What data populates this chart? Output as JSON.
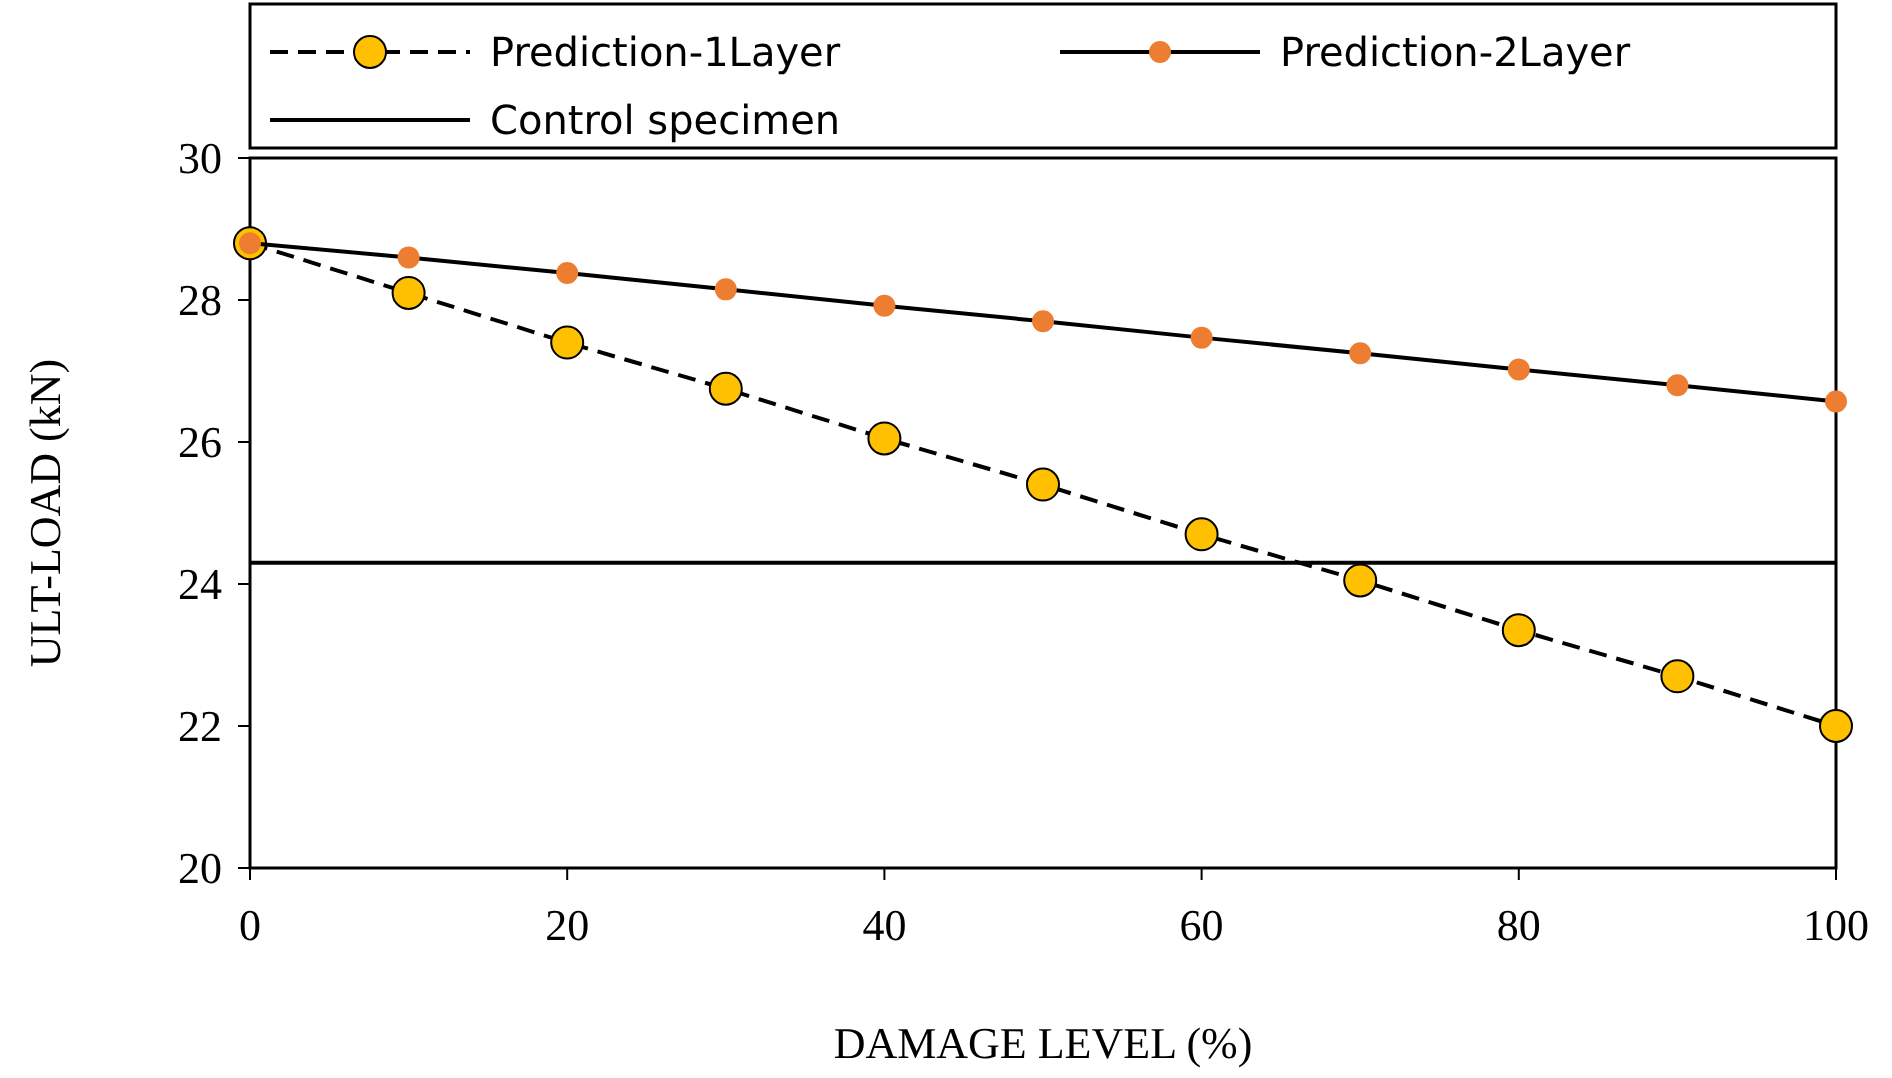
{
  "chart_data": {
    "type": "line",
    "xlabel": "DAMAGE LEVEL (%)",
    "ylabel": "ULT-LOAD (kN)",
    "x": [
      0,
      10,
      20,
      30,
      40,
      50,
      60,
      70,
      80,
      90,
      100
    ],
    "series": [
      {
        "name": "Prediction-1Layer",
        "color": "#ffc000",
        "marker": "circle",
        "line_style": "dashed",
        "values": [
          28.8,
          28.1,
          27.4,
          26.75,
          26.05,
          25.4,
          24.7,
          24.05,
          23.35,
          22.7,
          22.0
        ]
      },
      {
        "name": "Prediction-2Layer",
        "color": "#ed7d31",
        "marker": "circle",
        "line_style": "solid",
        "values": [
          28.8,
          28.6,
          28.38,
          28.15,
          27.92,
          27.7,
          27.47,
          27.25,
          27.02,
          26.8,
          26.57
        ]
      },
      {
        "name": "Control specimen",
        "color": "#000000",
        "marker": "none",
        "line_style": "solid",
        "x": [
          0,
          100
        ],
        "values": [
          24.3,
          24.3
        ]
      }
    ],
    "xlim": [
      0,
      100
    ],
    "xticks": [
      0,
      20,
      40,
      60,
      80,
      100
    ],
    "ylim": [
      20,
      30
    ],
    "yticks": [
      20,
      22,
      24,
      26,
      28,
      30
    ],
    "grid": false,
    "legend": "top"
  }
}
